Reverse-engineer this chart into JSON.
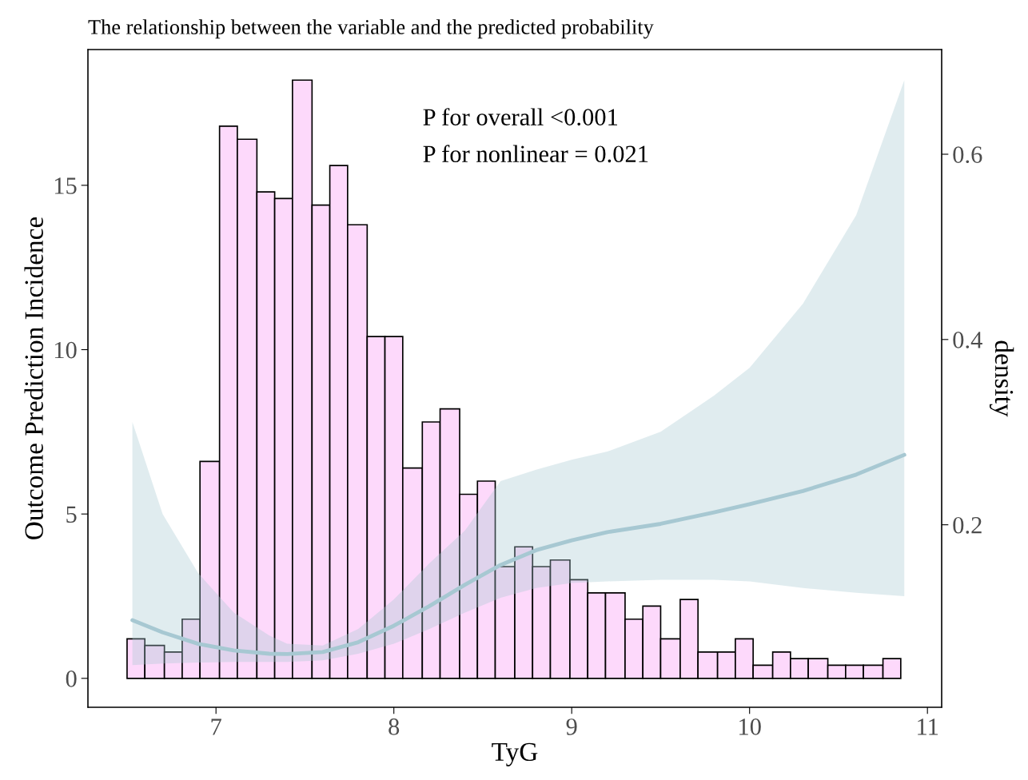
{
  "chart_data": {
    "type": "histogram",
    "title": "The relationship between the variable and the predicted probability",
    "xlabel": "TyG",
    "ylabel": "Outcome Prediction Incidence",
    "y2label": "density",
    "annotations": [
      "P for overall <0.001",
      "P for nonlinear = 0.021"
    ],
    "bins": [
      6.5,
      6.6,
      6.71,
      6.81,
      6.91,
      7.02,
      7.12,
      7.23,
      7.33,
      7.43,
      7.54,
      7.64,
      7.74,
      7.85,
      7.95,
      8.05,
      8.16,
      8.26,
      8.37,
      8.47,
      8.57,
      8.68,
      8.78,
      8.88,
      8.99,
      9.09,
      9.19,
      9.3,
      9.4,
      9.5,
      9.61,
      9.71,
      9.82,
      9.92,
      10.02,
      10.13,
      10.23,
      10.33,
      10.44,
      10.54,
      10.64,
      10.75,
      10.85
    ],
    "values": [
      1.2,
      1.0,
      0.8,
      1.8,
      6.6,
      16.8,
      16.4,
      14.8,
      14.6,
      18.2,
      14.4,
      15.6,
      13.8,
      10.4,
      10.4,
      6.4,
      7.8,
      8.2,
      5.6,
      6.0,
      3.4,
      4.0,
      3.4,
      3.6,
      3.0,
      2.6,
      2.6,
      1.8,
      2.2,
      1.2,
      2.4,
      0.8,
      0.8,
      1.2,
      0.4,
      0.8,
      0.6,
      0.6,
      0.4,
      0.4,
      0.4,
      0.6
    ],
    "color": "#fdd9fb",
    "series": [
      {
        "type": "line",
        "color": "#a7c8d2",
        "x": [
          6.53,
          6.7,
          6.9,
          7.1,
          7.3,
          7.4,
          7.6,
          7.8,
          8.0,
          8.2,
          8.4,
          8.6,
          8.8,
          9.0,
          9.2,
          9.5,
          9.8,
          10.0,
          10.3,
          10.6,
          10.87
        ],
        "values": [
          1.77,
          1.4,
          1.05,
          0.85,
          0.75,
          0.74,
          0.8,
          1.1,
          1.6,
          2.2,
          2.85,
          3.45,
          3.9,
          4.2,
          4.45,
          4.7,
          5.05,
          5.3,
          5.7,
          6.2,
          6.8
        ],
        "upper": [
          7.8,
          5.0,
          3.2,
          2.0,
          1.3,
          1.05,
          1.0,
          1.5,
          2.4,
          3.5,
          4.5,
          6.0,
          6.35,
          6.65,
          6.9,
          7.5,
          8.6,
          9.45,
          11.4,
          14.1,
          18.2
        ],
        "lower": [
          0.4,
          0.45,
          0.48,
          0.5,
          0.5,
          0.5,
          0.55,
          0.75,
          1.05,
          1.5,
          2.0,
          2.45,
          2.75,
          2.9,
          2.95,
          3.0,
          3.0,
          2.95,
          2.75,
          2.6,
          2.5
        ]
      }
    ],
    "xlim": [
      6.28,
      11.08
    ],
    "xticks": [
      7,
      8,
      9,
      10,
      11
    ],
    "ylim": [
      -0.88,
      19.13
    ],
    "yticks": [
      0,
      5,
      10,
      15
    ],
    "y2lim": [
      0.003,
      0.713
    ],
    "y2ticks": [
      0.2,
      0.4,
      0.6
    ],
    "grid": false,
    "legend": false
  }
}
